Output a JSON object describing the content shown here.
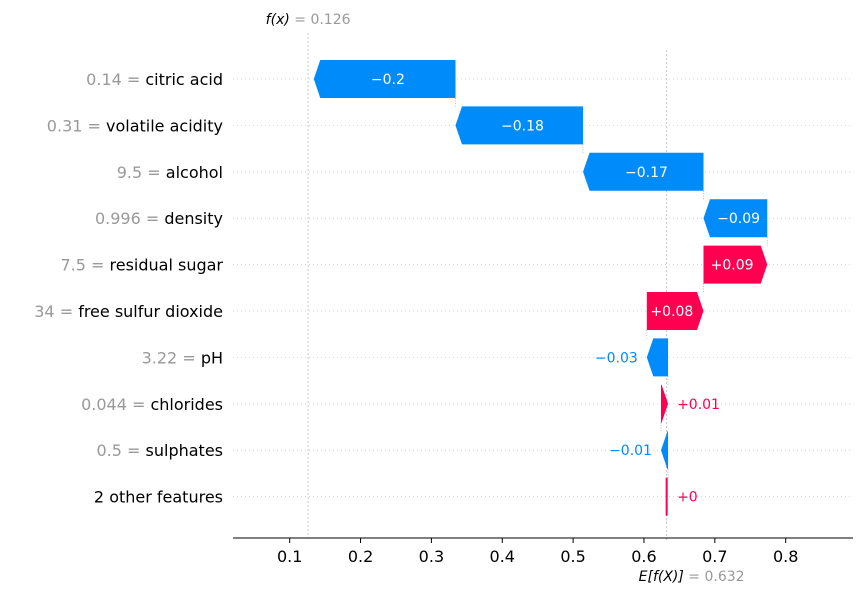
{
  "chart_data": {
    "type": "waterfall",
    "output_label": {
      "name": "f(x)",
      "value": "0.126"
    },
    "base_label": {
      "name": "E[f(X)]",
      "value": "0.632"
    },
    "fx": 0.126,
    "base_value": 0.632,
    "xlim": [
      0.02,
      0.895
    ],
    "x_ticks": [
      0.1,
      0.2,
      0.3,
      0.4,
      0.5,
      0.6,
      0.7,
      0.8
    ],
    "x_tick_labels": [
      "0.1",
      "0.2",
      "0.3",
      "0.4",
      "0.5",
      "0.6",
      "0.7",
      "0.8"
    ],
    "features": [
      {
        "value": "0.14",
        "name": "citric acid",
        "contribution": -0.2,
        "label": "−0.2"
      },
      {
        "value": "0.31",
        "name": "volatile acidity",
        "contribution": -0.18,
        "label": "−0.18"
      },
      {
        "value": "9.5",
        "name": "alcohol",
        "contribution": -0.17,
        "label": "−0.17"
      },
      {
        "value": "0.996",
        "name": "density",
        "contribution": -0.09,
        "label": "−0.09"
      },
      {
        "value": "7.5",
        "name": "residual sugar",
        "contribution": 0.09,
        "label": "+0.09"
      },
      {
        "value": "34",
        "name": "free sulfur dioxide",
        "contribution": 0.08,
        "label": "+0.08"
      },
      {
        "value": "3.22",
        "name": "pH",
        "contribution": -0.03,
        "label": "−0.03"
      },
      {
        "value": "0.044",
        "name": "chlorides",
        "contribution": 0.01,
        "label": "+0.01"
      },
      {
        "value": "0.5",
        "name": "sulphates",
        "contribution": -0.01,
        "label": "−0.01"
      },
      {
        "value": "",
        "name": "2 other features",
        "contribution": 0.002,
        "label": "+0"
      }
    ],
    "colors": {
      "positive": "#ff0051",
      "negative": "#008bfb",
      "muted": "#999999"
    }
  }
}
